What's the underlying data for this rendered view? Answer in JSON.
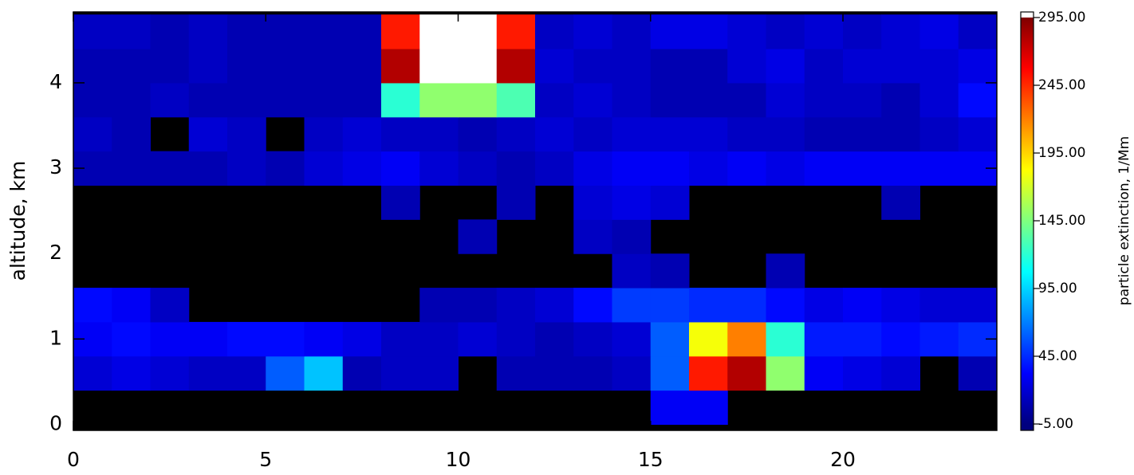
{
  "chart_data": {
    "type": "heatmap",
    "ylabel": "altitude,  km",
    "colorbar_label": "particle extinction,  1/Mm",
    "xlim": [
      0,
      24
    ],
    "ylim": [
      -0.07,
      4.83
    ],
    "xticks": [
      0,
      5,
      10,
      15,
      20
    ],
    "yticks": [
      0,
      1,
      2,
      3,
      4
    ],
    "zlim": [
      -5,
      295
    ],
    "zticks": [
      {
        "value": -5,
        "label": "-5.00"
      },
      {
        "value": 45,
        "label": "45.00"
      },
      {
        "value": 95,
        "label": "95.00"
      },
      {
        "value": 145,
        "label": "145.00"
      },
      {
        "value": 195,
        "label": "195.00"
      },
      {
        "value": 245,
        "label": "245.00"
      },
      {
        "value": 295,
        "label": "295.00"
      }
    ],
    "colorscale": [
      "#00007f",
      "#0000ff",
      "#007fff",
      "#00ffff",
      "#7fff7f",
      "#ffff00",
      "#ff7f00",
      "#ff0000",
      "#7f0000"
    ],
    "background": "#000000",
    "over_color": "#ffffff",
    "xbins": [
      0,
      1,
      2,
      3,
      4,
      5,
      6,
      7,
      8,
      9,
      10,
      11,
      12,
      13,
      14,
      15,
      16,
      17,
      18,
      19,
      20,
      21,
      22,
      23,
      24
    ],
    "ybins": [
      0,
      0.4,
      0.8,
      1.2,
      1.6,
      2.0,
      2.4,
      2.8,
      3.2,
      3.6,
      4.0,
      4.4,
      4.8
    ],
    "z": [
      [
        null,
        null,
        null,
        null,
        null,
        null,
        null,
        null,
        null,
        null,
        null,
        null,
        null,
        null,
        null,
        30,
        30,
        null,
        null,
        null,
        null,
        null,
        null,
        null
      ],
      [
        20,
        25,
        20,
        15,
        15,
        60,
        90,
        10,
        15,
        15,
        null,
        10,
        10,
        10,
        15,
        60,
        250,
        280,
        150,
        30,
        25,
        20,
        null,
        10
      ],
      [
        30,
        35,
        30,
        30,
        35,
        35,
        30,
        25,
        15,
        15,
        20,
        15,
        10,
        15,
        20,
        60,
        180,
        220,
        120,
        40,
        40,
        35,
        40,
        45
      ],
      [
        35,
        30,
        15,
        null,
        null,
        null,
        null,
        null,
        null,
        10,
        10,
        15,
        20,
        35,
        50,
        50,
        45,
        45,
        35,
        25,
        30,
        25,
        20,
        20
      ],
      [
        null,
        null,
        null,
        null,
        null,
        null,
        null,
        null,
        null,
        null,
        null,
        null,
        null,
        null,
        15,
        10,
        null,
        null,
        10,
        null,
        null,
        null,
        null,
        null
      ],
      [
        null,
        null,
        null,
        null,
        null,
        null,
        null,
        null,
        null,
        null,
        10,
        null,
        null,
        15,
        10,
        null,
        null,
        null,
        null,
        null,
        null,
        null,
        null,
        null
      ],
      [
        null,
        null,
        null,
        null,
        null,
        null,
        null,
        null,
        10,
        null,
        null,
        10,
        null,
        20,
        25,
        20,
        null,
        null,
        null,
        null,
        null,
        10,
        null,
        null
      ],
      [
        10,
        10,
        10,
        10,
        15,
        10,
        20,
        25,
        30,
        20,
        15,
        10,
        15,
        25,
        30,
        30,
        25,
        30,
        25,
        30,
        30,
        30,
        30,
        30
      ],
      [
        15,
        10,
        null,
        20,
        15,
        null,
        15,
        20,
        15,
        15,
        10,
        15,
        20,
        15,
        20,
        20,
        20,
        15,
        15,
        10,
        10,
        10,
        15,
        20
      ],
      [
        10,
        10,
        15,
        10,
        10,
        10,
        10,
        10,
        120,
        150,
        150,
        130,
        15,
        20,
        15,
        10,
        10,
        10,
        20,
        15,
        15,
        10,
        20,
        35
      ],
      [
        10,
        10,
        10,
        15,
        10,
        10,
        10,
        10,
        280,
        320,
        320,
        280,
        20,
        15,
        15,
        10,
        10,
        20,
        25,
        15,
        20,
        20,
        20,
        25
      ],
      [
        15,
        15,
        10,
        15,
        10,
        10,
        10,
        10,
        250,
        320,
        320,
        250,
        15,
        20,
        15,
        25,
        25,
        20,
        15,
        20,
        15,
        20,
        25,
        15
      ]
    ]
  }
}
